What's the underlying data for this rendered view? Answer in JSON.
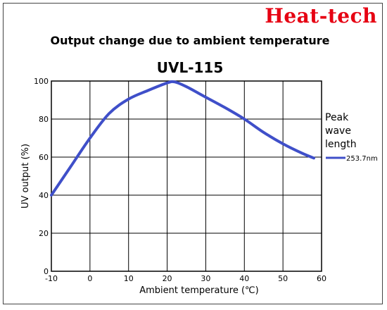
{
  "brand": "Heat-tech",
  "chart_data": {
    "type": "line",
    "title": "Output change due to ambient temperature",
    "subtitle": "UVL-115",
    "xlabel": "Ambient temperature (℃)",
    "ylabel": "UV output (%)",
    "xlim": [
      -10,
      60
    ],
    "ylim": [
      0,
      100
    ],
    "x_ticks": [
      -10,
      0,
      10,
      20,
      30,
      40,
      50,
      60
    ],
    "y_ticks": [
      0,
      20,
      40,
      60,
      80,
      100
    ],
    "grid": true,
    "legend_title": "Peak wave length",
    "legend_placement": "right",
    "series": [
      {
        "name": "253.7nm",
        "color": "#3f4fc9",
        "x": [
          -10,
          -5,
          0,
          5,
          10,
          15,
          20,
          22,
          25,
          30,
          35,
          40,
          45,
          50,
          55,
          58
        ],
        "y": [
          40,
          55,
          70,
          83,
          90.5,
          95,
          99,
          99.5,
          97,
          91.5,
          86,
          80,
          73,
          67,
          62,
          59.5
        ]
      }
    ]
  }
}
